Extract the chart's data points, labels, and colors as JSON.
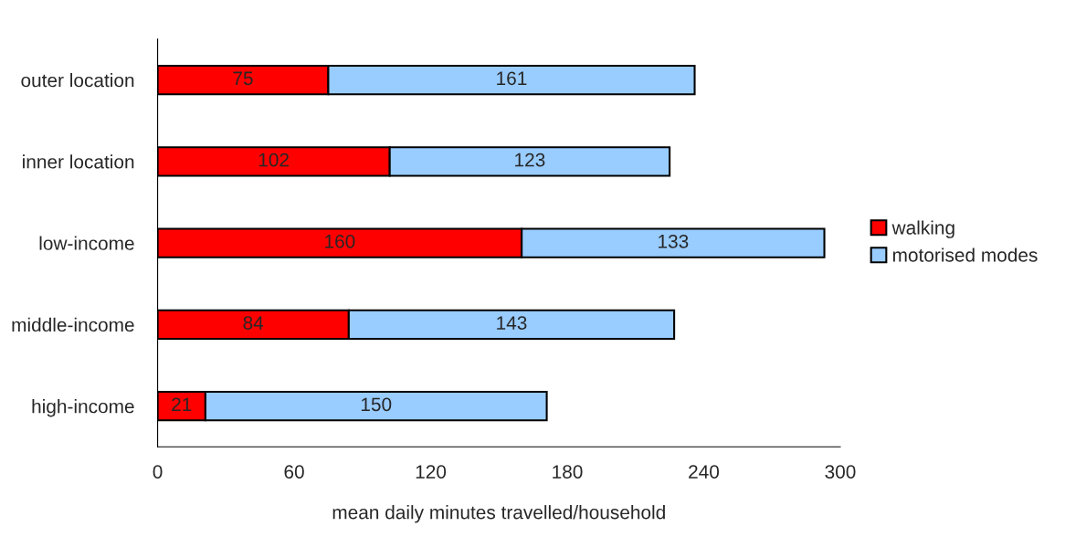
{
  "chart_data": {
    "type": "bar",
    "orientation": "horizontal",
    "stacked": true,
    "categories": [
      "outer location",
      "inner location",
      "low-income",
      "middle-income",
      "high-income"
    ],
    "series": [
      {
        "name": "walking",
        "color": "#ff0000",
        "values": [
          75,
          102,
          160,
          84,
          21
        ]
      },
      {
        "name": "motorised modes",
        "color": "#99ccff",
        "values": [
          161,
          123,
          133,
          143,
          150
        ]
      }
    ],
    "xlabel": "mean daily minutes travelled/household",
    "xlim": [
      0,
      300
    ],
    "xticks": [
      0,
      60,
      120,
      180,
      240,
      300
    ],
    "data_labels": true,
    "legend": "right",
    "grid": false
  }
}
